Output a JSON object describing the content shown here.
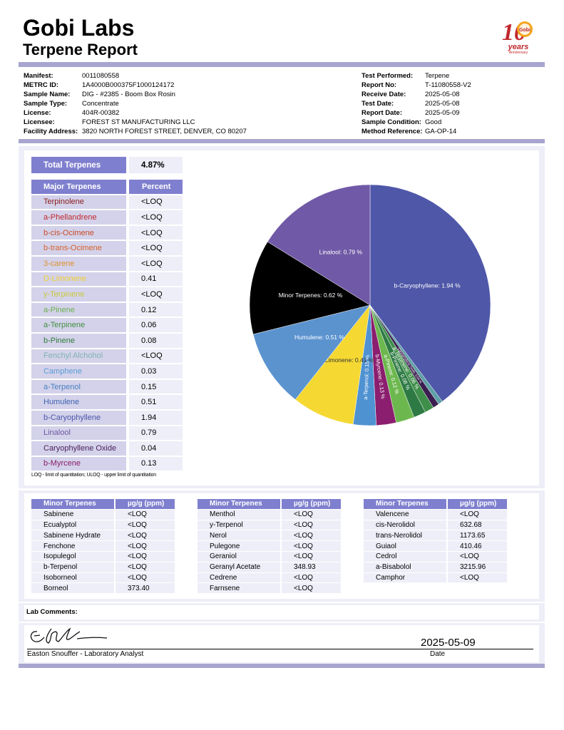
{
  "header": {
    "brand": "Gobi Labs",
    "report_title": "Terpene Report",
    "logo": {
      "number": "10",
      "text1": "Gobi",
      "text2": "years",
      "text3": "Anniversary"
    }
  },
  "meta_left": [
    {
      "k": "Manifest:",
      "v": "0011080558"
    },
    {
      "k": "METRC ID:",
      "v": "1A4000B000375F1000124172"
    },
    {
      "k": "Sample Name:",
      "v": "DIG - #2385 - Boom Box Rosin"
    },
    {
      "k": "Sample Type:",
      "v": "Concentrate"
    },
    {
      "k": "License:",
      "v": "404R-00382"
    },
    {
      "k": "Licensee:",
      "v": "FOREST ST MANUFACTURING LLC"
    },
    {
      "k": "Facility Address:",
      "v": "3820 NORTH FOREST STREET, DENVER, CO 80207"
    }
  ],
  "meta_right": [
    {
      "k": "Test Performed:",
      "v": "Terpene"
    },
    {
      "k": "Report No:",
      "v": "T-11080558-V2"
    },
    {
      "k": "Receive Date:",
      "v": "2025-05-08"
    },
    {
      "k": "Test Date:",
      "v": "2025-05-08"
    },
    {
      "k": "Report Date:",
      "v": "2025-05-09"
    },
    {
      "k": "Sample Condition:",
      "v": "Good"
    },
    {
      "k": "Method Reference:",
      "v": "GA-OP-14"
    }
  ],
  "total": {
    "label": "Total Terpenes",
    "value": "4.87%"
  },
  "major": {
    "headers": [
      "Major Terpenes",
      "Percent"
    ],
    "rows": [
      {
        "name": "Terpinolene",
        "value": "<LOQ",
        "color": "#8b1a1a"
      },
      {
        "name": "a-Phellandrene",
        "value": "<LOQ",
        "color": "#c0282d"
      },
      {
        "name": "b-cis-Ocimene",
        "value": "<LOQ",
        "color": "#c94a26"
      },
      {
        "name": "b-trans-Ocimene",
        "value": "<LOQ",
        "color": "#d8622a"
      },
      {
        "name": "3-carene",
        "value": "<LOQ",
        "color": "#e0902a"
      },
      {
        "name": "D-Limonene",
        "value": "0.41",
        "color": "#f0d030"
      },
      {
        "name": "y-Terpinene",
        "value": "<LOQ",
        "color": "#c9c93a"
      },
      {
        "name": "a-Pinene",
        "value": "0.12",
        "color": "#6ab04c"
      },
      {
        "name": "a-Terpinene",
        "value": "0.06",
        "color": "#3f8f3f"
      },
      {
        "name": "b-Pinene",
        "value": "0.08",
        "color": "#2f7a3a"
      },
      {
        "name": "Fenchyl Alchohol",
        "value": "<LOQ",
        "color": "#7fb3b3"
      },
      {
        "name": "Camphene",
        "value": "0.03",
        "color": "#5b9bd5"
      },
      {
        "name": "a-Terpenol",
        "value": "0.15",
        "color": "#4a7fc0"
      },
      {
        "name": "Humulene",
        "value": "0.51",
        "color": "#3f63b0"
      },
      {
        "name": "b-Caryophyllene",
        "value": "1.94",
        "color": "#4b55a8"
      },
      {
        "name": "Linalool",
        "value": "0.79",
        "color": "#6e56a0"
      },
      {
        "name": "Caryophyllene Oxide",
        "value": "0.04",
        "color": "#4a1e5a"
      },
      {
        "name": "b-Myrcene",
        "value": "0.13",
        "color": "#8a1a6a"
      }
    ],
    "footnote": "LOQ - limit of quantitation; ULOQ - upper limit of quantitation"
  },
  "chart_data": {
    "type": "pie",
    "slices": [
      {
        "label": "b-Caryophyllene",
        "value": 1.94,
        "color": "#4e57a8",
        "text": "b-Caryophyllene: 1.94 %"
      },
      {
        "label": "Camphene",
        "value": 0.03,
        "color": "#5fa0a8",
        "text": ""
      },
      {
        "label": "Caryophyllene Oxide",
        "value": 0.04,
        "color": "#3b1e4f",
        "text": "Caryophyllene Oxide: 0.04 %"
      },
      {
        "label": "a-Terpinene",
        "value": 0.06,
        "color": "#3f8f4a",
        "text": "a-Terpinene: 0.06 %"
      },
      {
        "label": "b-Pinene",
        "value": 0.08,
        "color": "#2e7a44",
        "text": "b-Pinene: 0.08 %"
      },
      {
        "label": "a-Pinene",
        "value": 0.12,
        "color": "#6db84e",
        "text": "a-Pinene: 0.12 %"
      },
      {
        "label": "b-Myrcene",
        "value": 0.13,
        "color": "#8b1e6e",
        "text": "b-Myrcene: 0.13 %"
      },
      {
        "label": "a-Terpenol",
        "value": 0.15,
        "color": "#4f92d2",
        "text": "a-Terpenol: 0.15 %"
      },
      {
        "label": "D-Limonene",
        "value": 0.41,
        "color": "#f5d832",
        "text": "D-Limonene: 0.41 %"
      },
      {
        "label": "Humulene",
        "value": 0.51,
        "color": "#5b93cf",
        "text": "Humulene: 0.51 %"
      },
      {
        "label": "Minor Terpenes",
        "value": 0.62,
        "color": "#000000",
        "text": "Minor Terpenes: 0.62 %"
      },
      {
        "label": "Linalool",
        "value": 0.79,
        "color": "#7059a6",
        "text": "Linalool: 0.79 %"
      }
    ]
  },
  "minor_tables": [
    {
      "headers": [
        "Minor Terpenes",
        "µg/g (ppm)"
      ],
      "rows": [
        [
          "Sabinene",
          "<LOQ"
        ],
        [
          "Ecualyptol",
          "<LOQ"
        ],
        [
          "Sabinene Hydrate",
          "<LOQ"
        ],
        [
          "Fenchone",
          "<LOQ"
        ],
        [
          "Isopulegol",
          "<LOQ"
        ],
        [
          "b-Terpenol",
          "<LOQ"
        ],
        [
          "Isoborneol",
          "<LOQ"
        ],
        [
          "Borneol",
          "373.40"
        ]
      ]
    },
    {
      "headers": [
        "Minor Terpenes",
        "µg/g (ppm)"
      ],
      "rows": [
        [
          "Menthol",
          "<LOQ"
        ],
        [
          "y-Terpenol",
          "<LOQ"
        ],
        [
          "Nerol",
          "<LOQ"
        ],
        [
          "Pulegone",
          "<LOQ"
        ],
        [
          "Geraniol",
          "<LOQ"
        ],
        [
          "Geranyl Acetate",
          "348.93"
        ],
        [
          "Cedrene",
          "<LOQ"
        ],
        [
          "Farnsene",
          "<LOQ"
        ]
      ]
    },
    {
      "headers": [
        "Minor Terpenes",
        "µg/g (ppm)"
      ],
      "rows": [
        [
          "Valencene",
          "<LOQ"
        ],
        [
          "cis-Nerolidol",
          "632.68"
        ],
        [
          "trans-Nerolidol",
          "1173.65"
        ],
        [
          "Guiaol",
          "410.46"
        ],
        [
          "Cedrol",
          "<LOQ"
        ],
        [
          "a-Bisabolol",
          "3215.96"
        ],
        [
          "Camphor",
          "<LOQ"
        ]
      ]
    }
  ],
  "lab_comments": "Lab Comments:",
  "signature": {
    "analyst": "Easton Snouffer - Laboratory Analyst",
    "date": "2025-05-09",
    "date_label": "Date"
  }
}
